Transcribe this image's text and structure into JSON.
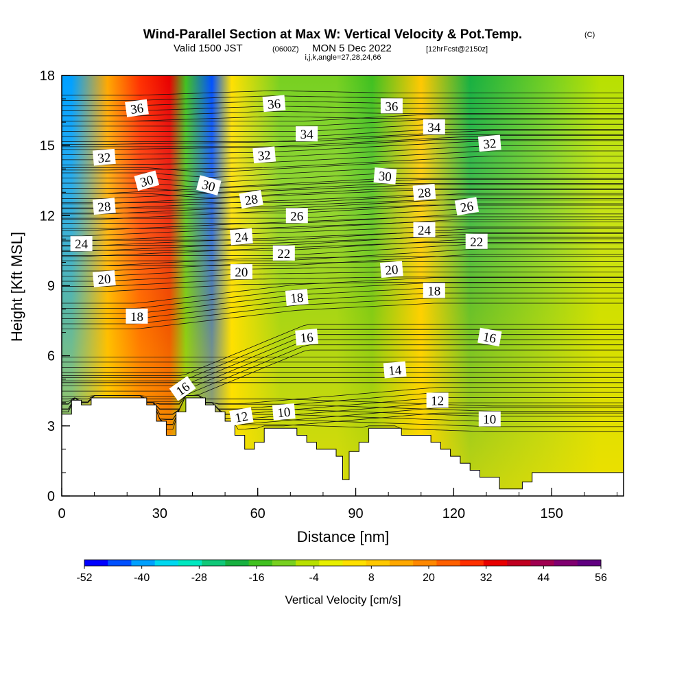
{
  "title": "Wind-Parallel Section at Max W: Vertical Velocity & Pot.Temp.",
  "copyright": "(C)",
  "subtitle_main": "Valid 1500 JST",
  "subtitle_utc": "(0600Z)",
  "subtitle_date": "MON 5 Dec 2022",
  "subtitle_fcst": "[12hrFcst@2150z]",
  "subtitle_params": "i,j,k,angle=27,28,24,66",
  "chart_data": {
    "type": "heatmap",
    "xlabel": "Distance [nm]",
    "ylabel": "Height [Kft MSL]",
    "xlim": [
      0,
      172
    ],
    "ylim": [
      0,
      18
    ],
    "x_ticks": [
      "0",
      "30",
      "60",
      "90",
      "120",
      "150"
    ],
    "x_tick_values": [
      0,
      30,
      60,
      90,
      120,
      150
    ],
    "y_ticks": [
      "0",
      "3",
      "6",
      "9",
      "12",
      "15",
      "18"
    ],
    "y_tick_values": [
      0,
      3,
      6,
      9,
      12,
      15,
      18
    ],
    "terrain": [
      [
        0,
        3.5
      ],
      [
        3,
        3.5
      ],
      [
        3,
        4.1
      ],
      [
        6,
        4.1
      ],
      [
        6,
        3.9
      ],
      [
        9,
        3.9
      ],
      [
        9,
        4.2
      ],
      [
        26,
        4.2
      ],
      [
        26,
        3.9
      ],
      [
        29,
        3.9
      ],
      [
        29,
        3.2
      ],
      [
        32,
        3.2
      ],
      [
        32,
        2.6
      ],
      [
        35,
        2.6
      ],
      [
        35,
        3.6
      ],
      [
        38,
        3.6
      ],
      [
        38,
        4.2
      ],
      [
        44,
        4.2
      ],
      [
        44,
        3.9
      ],
      [
        47,
        3.9
      ],
      [
        47,
        3.6
      ],
      [
        50,
        3.6
      ],
      [
        50,
        3.2
      ],
      [
        53,
        3.2
      ],
      [
        53,
        2.6
      ],
      [
        56,
        2.6
      ],
      [
        56,
        2.0
      ],
      [
        59,
        2.0
      ],
      [
        59,
        2.3
      ],
      [
        62,
        2.3
      ],
      [
        62,
        2.9
      ],
      [
        72,
        2.9
      ],
      [
        72,
        2.6
      ],
      [
        75,
        2.6
      ],
      [
        75,
        2.3
      ],
      [
        78,
        2.3
      ],
      [
        78,
        2.0
      ],
      [
        84,
        2.0
      ],
      [
        84,
        1.7
      ],
      [
        86,
        1.7
      ],
      [
        86,
        0.7
      ],
      [
        88,
        0.7
      ],
      [
        88,
        1.9
      ],
      [
        91,
        1.9
      ],
      [
        91,
        2.3
      ],
      [
        94,
        2.3
      ],
      [
        94,
        2.9
      ],
      [
        104,
        2.9
      ],
      [
        104,
        2.6
      ],
      [
        113,
        2.6
      ],
      [
        113,
        2.3
      ],
      [
        116,
        2.3
      ],
      [
        116,
        2.0
      ],
      [
        119,
        2.0
      ],
      [
        119,
        1.7
      ],
      [
        122,
        1.7
      ],
      [
        122,
        1.4
      ],
      [
        125,
        1.4
      ],
      [
        125,
        1.1
      ],
      [
        128,
        1.1
      ],
      [
        128,
        0.8
      ],
      [
        134,
        0.8
      ],
      [
        134,
        0.3
      ],
      [
        141,
        0.3
      ],
      [
        141,
        0.6
      ],
      [
        144,
        0.6
      ],
      [
        144,
        1.0
      ],
      [
        172,
        1.0
      ]
    ],
    "vertical_velocity_bands": [
      {
        "x": 3,
        "w": -40
      },
      {
        "x": 14,
        "w": 12
      },
      {
        "x": 24,
        "w": 30
      },
      {
        "x": 33,
        "w": 36
      },
      {
        "x": 38,
        "w": -16
      },
      {
        "x": 46,
        "w": -44
      },
      {
        "x": 52,
        "w": 4
      },
      {
        "x": 67,
        "w": -12
      },
      {
        "x": 84,
        "w": -8
      },
      {
        "x": 95,
        "w": -14
      },
      {
        "x": 110,
        "w": 10
      },
      {
        "x": 125,
        "w": -18
      },
      {
        "x": 150,
        "w": -10
      },
      {
        "x": 165,
        "w": -6
      }
    ],
    "theta_contours": {
      "levels": [
        10,
        12,
        14,
        16,
        18,
        20,
        22,
        24,
        26,
        28,
        30,
        32,
        34,
        36
      ],
      "labels": [
        {
          "text": "36",
          "x": 23,
          "y": 16.6,
          "rot": -8
        },
        {
          "text": "36",
          "x": 65,
          "y": 16.8,
          "rot": -5
        },
        {
          "text": "36",
          "x": 101,
          "y": 16.7,
          "rot": 0
        },
        {
          "text": "34",
          "x": 75,
          "y": 15.5,
          "rot": 0
        },
        {
          "text": "34",
          "x": 114,
          "y": 15.8,
          "rot": 0
        },
        {
          "text": "32",
          "x": 13,
          "y": 14.5,
          "rot": -5
        },
        {
          "text": "32",
          "x": 62,
          "y": 14.6,
          "rot": -5
        },
        {
          "text": "32",
          "x": 131,
          "y": 15.1,
          "rot": -5
        },
        {
          "text": "30",
          "x": 26,
          "y": 13.5,
          "rot": -15
        },
        {
          "text": "30",
          "x": 45,
          "y": 13.3,
          "rot": 15
        },
        {
          "text": "30",
          "x": 99,
          "y": 13.7,
          "rot": 5
        },
        {
          "text": "28",
          "x": 13,
          "y": 12.4,
          "rot": -5
        },
        {
          "text": "28",
          "x": 58,
          "y": 12.7,
          "rot": -10
        },
        {
          "text": "28",
          "x": 111,
          "y": 13.0,
          "rot": -5
        },
        {
          "text": "26",
          "x": 72,
          "y": 12.0,
          "rot": 0
        },
        {
          "text": "26",
          "x": 124,
          "y": 12.4,
          "rot": -10
        },
        {
          "text": "24",
          "x": 6,
          "y": 10.8,
          "rot": 0
        },
        {
          "text": "24",
          "x": 55,
          "y": 11.1,
          "rot": -5
        },
        {
          "text": "24",
          "x": 111,
          "y": 11.4,
          "rot": 0
        },
        {
          "text": "22",
          "x": 68,
          "y": 10.4,
          "rot": 0
        },
        {
          "text": "22",
          "x": 127,
          "y": 10.9,
          "rot": 0
        },
        {
          "text": "20",
          "x": 13,
          "y": 9.3,
          "rot": -5
        },
        {
          "text": "20",
          "x": 55,
          "y": 9.6,
          "rot": 0
        },
        {
          "text": "20",
          "x": 101,
          "y": 9.7,
          "rot": -5
        },
        {
          "text": "18",
          "x": 23,
          "y": 7.7,
          "rot": 0
        },
        {
          "text": "18",
          "x": 72,
          "y": 8.5,
          "rot": -5
        },
        {
          "text": "18",
          "x": 114,
          "y": 8.8,
          "rot": 0
        },
        {
          "text": "16",
          "x": 37,
          "y": 4.6,
          "rot": -35
        },
        {
          "text": "16",
          "x": 75,
          "y": 6.8,
          "rot": -5
        },
        {
          "text": "16",
          "x": 131,
          "y": 6.8,
          "rot": 10
        },
        {
          "text": "14",
          "x": 102,
          "y": 5.4,
          "rot": -5
        },
        {
          "text": "12",
          "x": 55,
          "y": 3.4,
          "rot": -10
        },
        {
          "text": "12",
          "x": 115,
          "y": 4.1,
          "rot": 0
        },
        {
          "text": "10",
          "x": 68,
          "y": 3.6,
          "rot": -5
        },
        {
          "text": "10",
          "x": 131,
          "y": 3.3,
          "rot": 0
        }
      ]
    },
    "colorbar": {
      "label": "Vertical Velocity [cm/s]",
      "tick_labels": [
        "-52",
        "-40",
        "-28",
        "-16",
        "-4",
        "8",
        "20",
        "32",
        "44",
        "56"
      ],
      "colors": [
        "#0000ff",
        "#0050ff",
        "#00a0ff",
        "#00d8f0",
        "#00e8c0",
        "#10c878",
        "#18b040",
        "#40c020",
        "#78d020",
        "#b8e000",
        "#e8f000",
        "#ffe000",
        "#ffc800",
        "#ffa800",
        "#ff8800",
        "#ff6000",
        "#ff3000",
        "#e80000",
        "#c00020",
        "#a00050",
        "#800070",
        "#600080"
      ]
    }
  }
}
